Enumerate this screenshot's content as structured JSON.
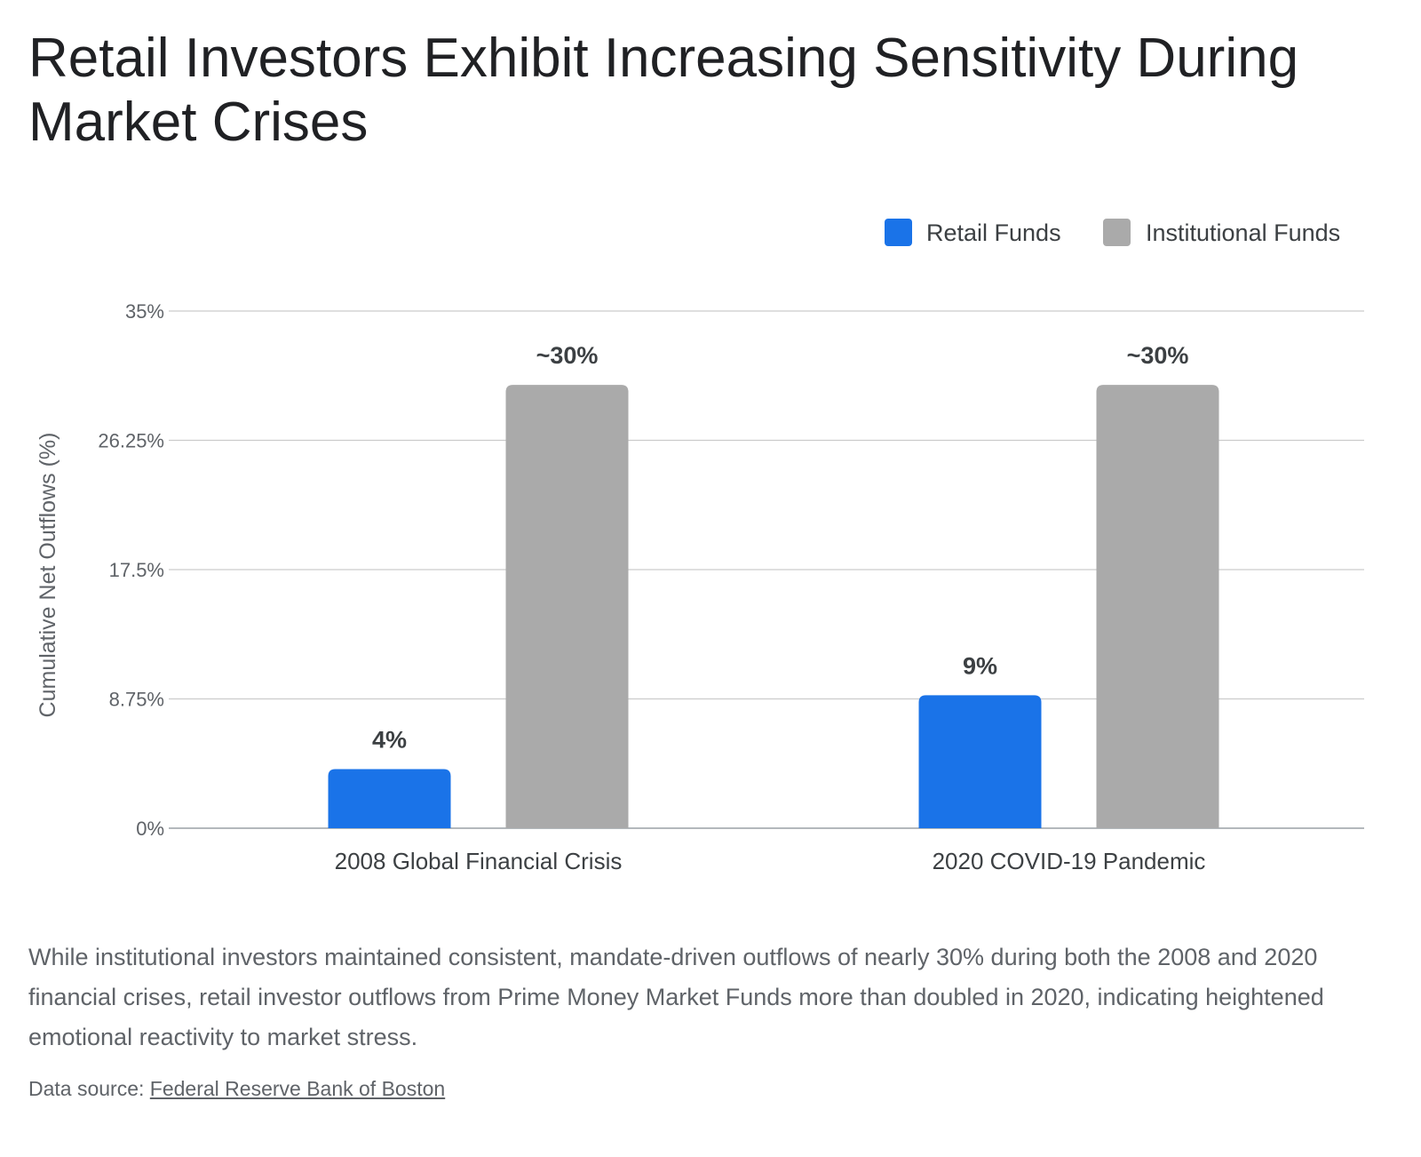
{
  "title": "Retail Investors Exhibit Increasing Sensitivity During Market Crises",
  "caption": "While institutional investors maintained consistent, mandate-driven outflows of nearly 30% during both the 2008 and 2020 financial crises, retail investor outflows from Prime Money Market Funds more than doubled in 2020, indicating heightened emotional reactivity to market stress.",
  "source": {
    "prefix": "Data source: ",
    "link_text": "Federal Reserve Bank of Boston"
  },
  "chart_data": {
    "type": "bar",
    "categories": [
      "2008 Global Financial Crisis",
      "2020 COVID-19 Pandemic"
    ],
    "series": [
      {
        "name": "Retail Funds",
        "values": [
          4,
          9
        ],
        "labels": [
          "4%",
          "9%"
        ],
        "color": "#1a73e8"
      },
      {
        "name": "Institutional Funds",
        "values": [
          30,
          30
        ],
        "labels": [
          "~30%",
          "~30%"
        ],
        "color": "#aaaaaa"
      }
    ],
    "xlabel": "",
    "ylabel": "Cumulative Net Outflows (%)",
    "ylim": [
      0,
      35
    ],
    "yticks": [
      0,
      8.75,
      17.5,
      26.25,
      35
    ],
    "ytick_labels": [
      "0%",
      "8.75%",
      "17.5%",
      "26.25%",
      "35%"
    ],
    "grid": true,
    "legend_position": "top-right"
  }
}
